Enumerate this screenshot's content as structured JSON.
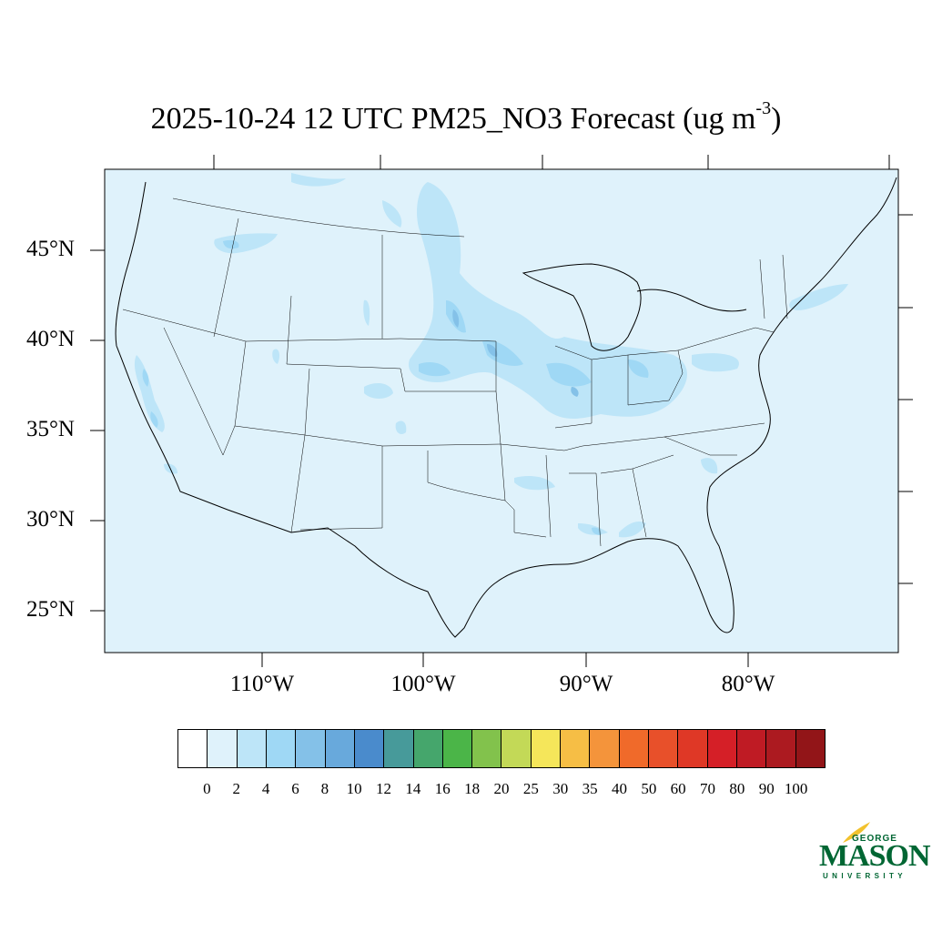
{
  "map": {
    "title_main": "2025-10-24 12 UTC PM25_NO3 Forecast (ug m",
    "title_exp": "-3",
    "title_close": ")",
    "lat_labels": [
      "45°N",
      "40°N",
      "35°N",
      "30°N",
      "25°N"
    ],
    "lon_labels": [
      "110°W",
      "100°W",
      "90°W",
      "80°W"
    ],
    "background_color": "#dff2fb",
    "colorbar": {
      "colors": [
        "#ffffff",
        "#dff2fb",
        "#bde5f8",
        "#9fd8f5",
        "#84c1e8",
        "#68a9dc",
        "#4a8bcc",
        "#479a9a",
        "#45a66c",
        "#4bb548",
        "#82c24c",
        "#c3d957",
        "#f5e65a",
        "#f6be45",
        "#f4943b",
        "#f06a2a",
        "#e8502a",
        "#df3826",
        "#d51f27",
        "#bf1b24",
        "#ac1a20",
        "#921518"
      ],
      "labels": [
        "0",
        "2",
        "4",
        "6",
        "8",
        "10",
        "12",
        "14",
        "16",
        "18",
        "20",
        "25",
        "30",
        "35",
        "40",
        "50",
        "60",
        "70",
        "80",
        "90",
        "100"
      ]
    }
  },
  "logo": {
    "line1": "GEORGE",
    "line2": "MASON",
    "line3": "UNIVERSITY",
    "brand_color": "#006633",
    "accent_color": "#f2c22e"
  }
}
